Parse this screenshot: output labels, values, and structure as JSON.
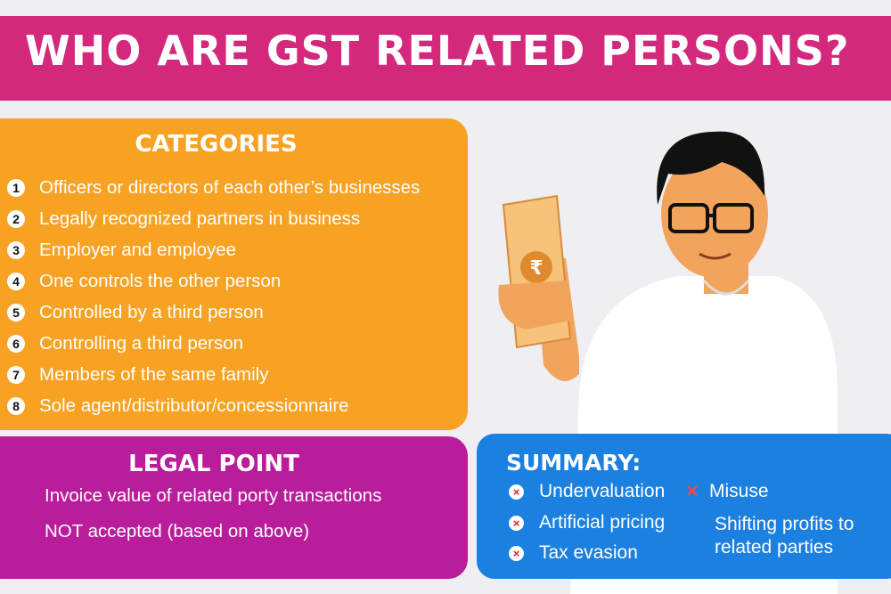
{
  "title": "WHO ARE GST RELATED PERSONS?",
  "categories": {
    "heading": "CATEGORIES",
    "items": [
      {
        "num": "1",
        "text": "Officers or directors of each other’s businesses"
      },
      {
        "num": "2",
        "text": "Legally recognized partners in business"
      },
      {
        "num": "3",
        "text": "Employer and employee"
      },
      {
        "num": "4",
        "text": "One controls the other person"
      },
      {
        "num": "5",
        "text": "Controlled by a third person"
      },
      {
        "num": "6",
        "text": "Controlling a third person"
      },
      {
        "num": "7",
        "text": "Members of the same family"
      },
      {
        "num": "8",
        "text": "Sole agent/distributor/concessionnaire"
      }
    ]
  },
  "legal": {
    "heading": "LEGAL POINT",
    "line1": "Invoice value of related porty transactions",
    "line2": "NOT accepted (based on above)"
  },
  "summary": {
    "heading": "SUMMARY:",
    "items": [
      "Undervaluation",
      "Artificial pricing",
      "Tax evasion",
      "Misuse",
      "Shifting profits to",
      "related parties"
    ],
    "x_mark": "×"
  },
  "illustration": {
    "currency_symbol": "₹"
  },
  "colors": {
    "header": "#d3287c",
    "categories": "#f8a223",
    "legal": "#b91d9b",
    "summary": "#1b80e0"
  }
}
